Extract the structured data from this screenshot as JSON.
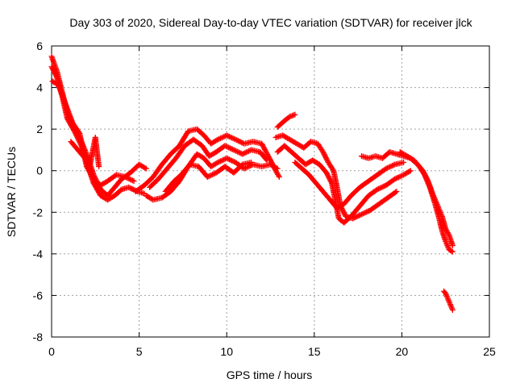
{
  "chart_data": {
    "type": "scatter",
    "title": "Day 303 of 2020, Sidereal Day-to-day VTEC variation (SDTVAR) for receiver jlck",
    "xlabel": "GPS time / hours",
    "ylabel": "SDTVAR / TECUs",
    "xlim": [
      0,
      25
    ],
    "ylim": [
      -8,
      6
    ],
    "xticks": [
      0,
      5,
      10,
      15,
      20,
      25
    ],
    "yticks": [
      -8,
      -6,
      -4,
      -2,
      0,
      2,
      4,
      6
    ],
    "grid": true,
    "marker": "+",
    "series": [
      {
        "name": "satellite-track-1",
        "color": "#ff0000",
        "points": [
          [
            0.0,
            5.5
          ],
          [
            0.3,
            4.8
          ],
          [
            0.6,
            3.8
          ],
          [
            0.9,
            2.8
          ],
          [
            1.2,
            2.2
          ],
          [
            1.6,
            1.6
          ],
          [
            2.0,
            0.8
          ],
          [
            2.4,
            -0.2
          ],
          [
            2.8,
            -0.9
          ],
          [
            3.2,
            -1.2
          ],
          [
            3.6,
            -0.8
          ],
          [
            4.0,
            -0.4
          ],
          [
            4.5,
            -0.1
          ],
          [
            5.0,
            0.3
          ],
          [
            5.4,
            0.1
          ]
        ]
      },
      {
        "name": "satellite-track-2",
        "color": "#ff0000",
        "points": [
          [
            0.0,
            5.0
          ],
          [
            0.3,
            4.5
          ],
          [
            0.6,
            3.6
          ],
          [
            0.9,
            2.5
          ],
          [
            1.3,
            1.9
          ],
          [
            1.7,
            1.2
          ],
          [
            2.0,
            0.4
          ],
          [
            2.4,
            -0.6
          ],
          [
            2.8,
            -1.2
          ],
          [
            3.2,
            -1.4
          ],
          [
            3.6,
            -1.2
          ],
          [
            4.0,
            -0.9
          ],
          [
            4.4,
            -0.8
          ],
          [
            4.9,
            -1.0
          ],
          [
            5.3,
            -1.1
          ]
        ]
      },
      {
        "name": "satellite-track-3",
        "color": "#ff0000",
        "points": [
          [
            0.05,
            4.3
          ],
          [
            0.4,
            4.1
          ],
          [
            0.8,
            3.2
          ],
          [
            1.2,
            2.3
          ],
          [
            1.6,
            1.8
          ],
          [
            2.0,
            0.2
          ],
          [
            2.4,
            -0.4
          ],
          [
            2.8,
            -0.7
          ],
          [
            3.2,
            -0.5
          ],
          [
            3.7,
            -0.2
          ],
          [
            4.2,
            -0.3
          ],
          [
            4.7,
            -0.5
          ]
        ]
      },
      {
        "name": "satellite-track-4",
        "color": "#ff0000",
        "points": [
          [
            1.1,
            1.4
          ],
          [
            1.6,
            0.9
          ],
          [
            2.2,
            0.3
          ],
          [
            2.5,
            1.6
          ],
          [
            2.7,
            0.2
          ]
        ]
      },
      {
        "name": "satellite-track-5",
        "color": "#ff0000",
        "points": [
          [
            4.8,
            -1.0
          ],
          [
            5.3,
            -0.7
          ],
          [
            5.8,
            -0.3
          ],
          [
            6.3,
            0.3
          ],
          [
            6.8,
            0.8
          ],
          [
            7.3,
            1.2
          ],
          [
            7.8,
            1.9
          ],
          [
            8.3,
            2.0
          ],
          [
            8.7,
            1.7
          ],
          [
            9.1,
            1.3
          ],
          [
            9.5,
            1.5
          ],
          [
            10.0,
            1.7
          ],
          [
            10.5,
            1.5
          ],
          [
            11.0,
            1.3
          ],
          [
            11.5,
            1.4
          ],
          [
            12.0,
            1.3
          ],
          [
            12.5,
            0.5
          ],
          [
            12.8,
            0.0
          ],
          [
            13.0,
            -0.3
          ]
        ]
      },
      {
        "name": "satellite-track-6",
        "color": "#ff0000",
        "points": [
          [
            5.6,
            -0.8
          ],
          [
            6.1,
            -0.4
          ],
          [
            6.6,
            0.1
          ],
          [
            7.1,
            0.6
          ],
          [
            7.6,
            1.2
          ],
          [
            8.1,
            1.5
          ],
          [
            8.6,
            1.2
          ],
          [
            9.0,
            0.7
          ],
          [
            9.4,
            0.9
          ],
          [
            9.9,
            1.2
          ],
          [
            10.4,
            1.0
          ],
          [
            10.9,
            0.8
          ],
          [
            11.4,
            1.0
          ],
          [
            11.9,
            0.9
          ],
          [
            12.3,
            0.5
          ]
        ]
      },
      {
        "name": "satellite-track-7",
        "color": "#ff0000",
        "points": [
          [
            5.4,
            -1.2
          ],
          [
            5.8,
            -1.4
          ],
          [
            6.3,
            -1.3
          ],
          [
            6.8,
            -1.0
          ],
          [
            7.3,
            -0.5
          ],
          [
            7.8,
            0.2
          ],
          [
            8.3,
            0.8
          ],
          [
            8.7,
            0.6
          ],
          [
            9.1,
            0.2
          ],
          [
            9.5,
            0.4
          ],
          [
            10.0,
            0.6
          ],
          [
            10.5,
            0.4
          ],
          [
            11.0,
            0.1
          ],
          [
            11.5,
            0.3
          ],
          [
            12.0,
            0.2
          ],
          [
            12.5,
            0.3
          ],
          [
            12.9,
            0.1
          ]
        ]
      },
      {
        "name": "satellite-track-8",
        "color": "#ff0000",
        "points": [
          [
            6.5,
            -1.0
          ],
          [
            7.0,
            -0.5
          ],
          [
            7.4,
            -0.2
          ],
          [
            7.9,
            0.3
          ],
          [
            8.4,
            0.2
          ],
          [
            8.9,
            -0.3
          ],
          [
            9.4,
            -0.1
          ],
          [
            9.9,
            0.2
          ],
          [
            10.4,
            -0.1
          ],
          [
            10.9,
            0.3
          ],
          [
            11.4,
            0.4
          ]
        ]
      },
      {
        "name": "satellite-track-9",
        "color": "#ff0000",
        "points": [
          [
            12.9,
            2.1
          ],
          [
            13.3,
            2.4
          ],
          [
            13.6,
            2.6
          ],
          [
            13.9,
            2.7
          ]
        ]
      },
      {
        "name": "satellite-track-10",
        "color": "#ff0000",
        "points": [
          [
            12.8,
            1.6
          ],
          [
            13.2,
            1.7
          ],
          [
            13.6,
            1.5
          ],
          [
            14.0,
            1.3
          ],
          [
            14.4,
            1.1
          ],
          [
            14.8,
            1.4
          ],
          [
            15.2,
            1.3
          ],
          [
            15.5,
            0.9
          ],
          [
            15.8,
            0.4
          ],
          [
            16.1,
            0.0
          ],
          [
            16.3,
            -0.8
          ],
          [
            16.5,
            -1.7
          ],
          [
            16.8,
            -2.2
          ],
          [
            17.2,
            -2.3
          ],
          [
            17.7,
            -2.1
          ],
          [
            18.2,
            -1.9
          ],
          [
            18.7,
            -1.6
          ],
          [
            19.2,
            -1.3
          ],
          [
            19.7,
            -1.0
          ]
        ]
      },
      {
        "name": "satellite-track-11",
        "color": "#ff0000",
        "points": [
          [
            12.9,
            0.9
          ],
          [
            13.3,
            1.2
          ],
          [
            13.7,
            0.9
          ],
          [
            14.1,
            0.6
          ],
          [
            14.5,
            0.3
          ],
          [
            14.9,
            0.5
          ],
          [
            15.3,
            0.3
          ],
          [
            15.7,
            -0.1
          ],
          [
            16.0,
            -0.6
          ],
          [
            16.2,
            -1.4
          ],
          [
            16.4,
            -2.3
          ],
          [
            16.7,
            -2.5
          ],
          [
            17.1,
            -2.2
          ],
          [
            17.6,
            -1.7
          ],
          [
            18.1,
            -1.2
          ],
          [
            18.6,
            -0.9
          ],
          [
            19.1,
            -0.7
          ],
          [
            19.6,
            -0.4
          ],
          [
            20.1,
            -0.2
          ],
          [
            20.5,
            0.0
          ]
        ]
      },
      {
        "name": "satellite-track-12",
        "color": "#ff0000",
        "points": [
          [
            13.9,
            0.4
          ],
          [
            14.3,
            0.1
          ],
          [
            14.7,
            -0.2
          ],
          [
            15.1,
            -0.6
          ],
          [
            15.5,
            -1.0
          ],
          [
            15.9,
            -1.4
          ],
          [
            16.3,
            -1.8
          ],
          [
            16.7,
            -1.6
          ],
          [
            17.1,
            -1.2
          ],
          [
            17.6,
            -0.8
          ],
          [
            18.1,
            -0.5
          ],
          [
            18.6,
            -0.2
          ],
          [
            19.1,
            0.1
          ],
          [
            19.6,
            0.3
          ],
          [
            20.1,
            0.4
          ]
        ]
      },
      {
        "name": "satellite-track-13",
        "color": "#ff0000",
        "points": [
          [
            17.7,
            0.7
          ],
          [
            18.1,
            0.6
          ],
          [
            18.5,
            0.7
          ],
          [
            18.9,
            0.6
          ],
          [
            19.3,
            0.9
          ],
          [
            19.7,
            0.8
          ],
          [
            20.1,
            0.7
          ],
          [
            20.5,
            0.6
          ],
          [
            20.9,
            0.3
          ],
          [
            21.2,
            0.0
          ],
          [
            21.5,
            -0.5
          ],
          [
            21.8,
            -1.2
          ],
          [
            22.1,
            -1.8
          ],
          [
            22.3,
            -2.2
          ],
          [
            22.5,
            -2.8
          ],
          [
            22.7,
            -3.1
          ],
          [
            22.9,
            -3.6
          ]
        ]
      },
      {
        "name": "satellite-track-14",
        "color": "#ff0000",
        "points": [
          [
            19.9,
            0.9
          ],
          [
            20.3,
            0.7
          ],
          [
            20.7,
            0.5
          ],
          [
            21.0,
            0.2
          ],
          [
            21.3,
            -0.2
          ],
          [
            21.6,
            -0.8
          ],
          [
            21.9,
            -1.6
          ],
          [
            22.1,
            -2.2
          ],
          [
            22.3,
            -2.9
          ],
          [
            22.5,
            -3.4
          ],
          [
            22.7,
            -3.8
          ],
          [
            22.9,
            -3.9
          ]
        ]
      },
      {
        "name": "satellite-track-15",
        "color": "#ff0000",
        "points": [
          [
            22.4,
            -5.8
          ],
          [
            22.5,
            -5.9
          ],
          [
            22.6,
            -6.1
          ],
          [
            22.7,
            -6.3
          ],
          [
            22.8,
            -6.5
          ],
          [
            22.9,
            -6.7
          ]
        ]
      }
    ]
  }
}
